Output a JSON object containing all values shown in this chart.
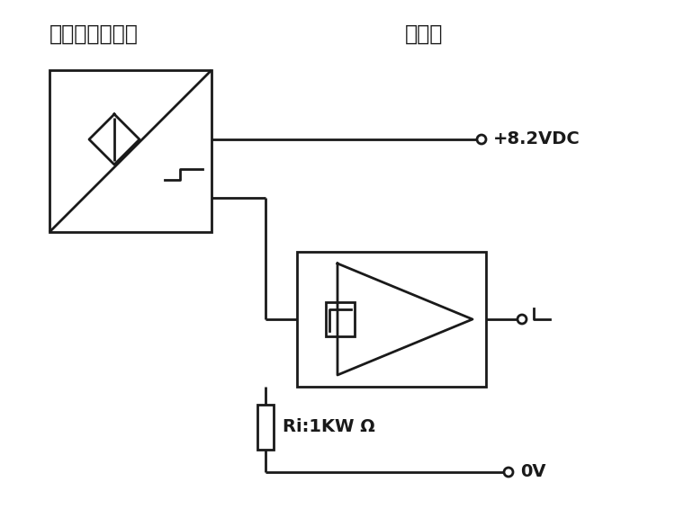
{
  "title_left": "本安防爆传感器",
  "title_right": "放大器",
  "label_vdc": "+8.2VDC",
  "label_0v": "0V",
  "label_ri": "Ri:1KW Ω",
  "line_color": "#1a1a1a",
  "bg_color": "#ffffff",
  "line_width": 2.0,
  "figsize": [
    7.5,
    5.66
  ],
  "dpi": 100
}
